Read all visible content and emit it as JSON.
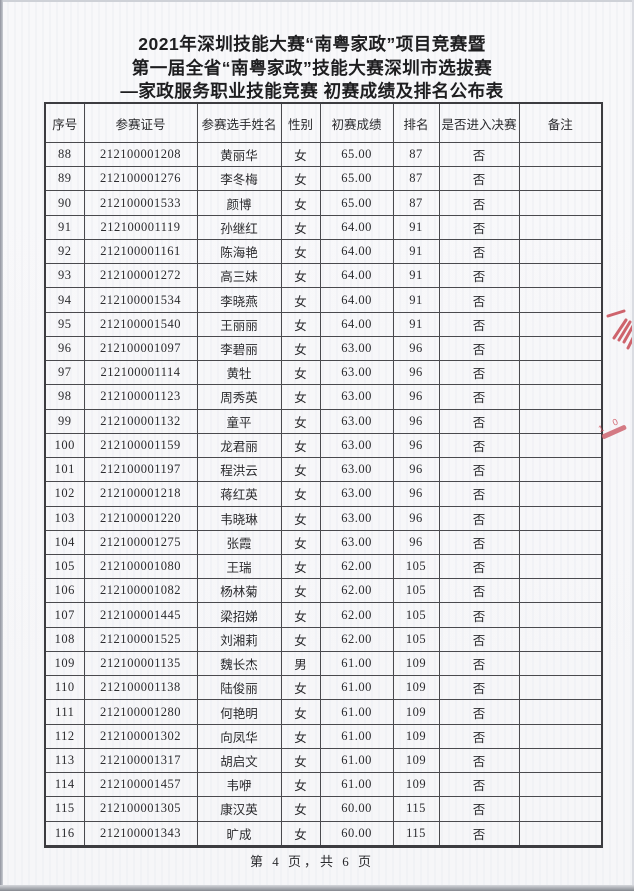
{
  "page": {
    "title_lines": [
      "2021年深圳技能大赛“南粤家政”项目竞赛暨",
      "第一届全省“南粤家政”技能大赛深圳市选拔赛",
      "—家政服务职业技能竞赛 初赛成绩及排名公布表"
    ],
    "footer": "第 4 页，共 6 页"
  },
  "table": {
    "headers": [
      "序号",
      "参赛证号",
      "参赛选手姓名",
      "性别",
      "初赛成绩",
      "排名",
      "是否进入决赛",
      "备注"
    ],
    "rows": [
      [
        "88",
        "212100001208",
        "黄丽华",
        "女",
        "65.00",
        "87",
        "否",
        ""
      ],
      [
        "89",
        "212100001276",
        "李冬梅",
        "女",
        "65.00",
        "87",
        "否",
        ""
      ],
      [
        "90",
        "212100001533",
        "颜博",
        "女",
        "65.00",
        "87",
        "否",
        ""
      ],
      [
        "91",
        "212100001119",
        "孙继红",
        "女",
        "64.00",
        "91",
        "否",
        ""
      ],
      [
        "92",
        "212100001161",
        "陈海艳",
        "女",
        "64.00",
        "91",
        "否",
        ""
      ],
      [
        "93",
        "212100001272",
        "高三妹",
        "女",
        "64.00",
        "91",
        "否",
        ""
      ],
      [
        "94",
        "212100001534",
        "李晓燕",
        "女",
        "64.00",
        "91",
        "否",
        ""
      ],
      [
        "95",
        "212100001540",
        "王丽丽",
        "女",
        "64.00",
        "91",
        "否",
        ""
      ],
      [
        "96",
        "212100001097",
        "李碧丽",
        "女",
        "63.00",
        "96",
        "否",
        ""
      ],
      [
        "97",
        "212100001114",
        "黄牡",
        "女",
        "63.00",
        "96",
        "否",
        ""
      ],
      [
        "98",
        "212100001123",
        "周秀英",
        "女",
        "63.00",
        "96",
        "否",
        ""
      ],
      [
        "99",
        "212100001132",
        "童平",
        "女",
        "63.00",
        "96",
        "否",
        ""
      ],
      [
        "100",
        "212100001159",
        "龙君丽",
        "女",
        "63.00",
        "96",
        "否",
        ""
      ],
      [
        "101",
        "212100001197",
        "程洪云",
        "女",
        "63.00",
        "96",
        "否",
        ""
      ],
      [
        "102",
        "212100001218",
        "蒋红英",
        "女",
        "63.00",
        "96",
        "否",
        ""
      ],
      [
        "103",
        "212100001220",
        "韦晓琳",
        "女",
        "63.00",
        "96",
        "否",
        ""
      ],
      [
        "104",
        "212100001275",
        "张霞",
        "女",
        "63.00",
        "96",
        "否",
        ""
      ],
      [
        "105",
        "212100001080",
        "王瑞",
        "女",
        "62.00",
        "105",
        "否",
        ""
      ],
      [
        "106",
        "212100001082",
        "杨林菊",
        "女",
        "62.00",
        "105",
        "否",
        ""
      ],
      [
        "107",
        "212100001445",
        "梁招娣",
        "女",
        "62.00",
        "105",
        "否",
        ""
      ],
      [
        "108",
        "212100001525",
        "刘湘莉",
        "女",
        "62.00",
        "105",
        "否",
        ""
      ],
      [
        "109",
        "212100001135",
        "魏长杰",
        "男",
        "61.00",
        "109",
        "否",
        ""
      ],
      [
        "110",
        "212100001138",
        "陆俊丽",
        "女",
        "61.00",
        "109",
        "否",
        ""
      ],
      [
        "111",
        "212100001280",
        "何艳明",
        "女",
        "61.00",
        "109",
        "否",
        ""
      ],
      [
        "112",
        "212100001302",
        "向凤华",
        "女",
        "61.00",
        "109",
        "否",
        ""
      ],
      [
        "113",
        "212100001317",
        "胡启文",
        "女",
        "61.00",
        "109",
        "否",
        ""
      ],
      [
        "114",
        "212100001457",
        "韦咿",
        "女",
        "61.00",
        "109",
        "否",
        ""
      ],
      [
        "115",
        "212100001305",
        "康汉英",
        "女",
        "60.00",
        "115",
        "否",
        ""
      ],
      [
        "116",
        "212100001343",
        "旷成",
        "女",
        "60.00",
        "115",
        "否",
        ""
      ]
    ]
  },
  "stamp": {
    "fragment_digits": "1 0",
    "color": "#c84b55"
  }
}
